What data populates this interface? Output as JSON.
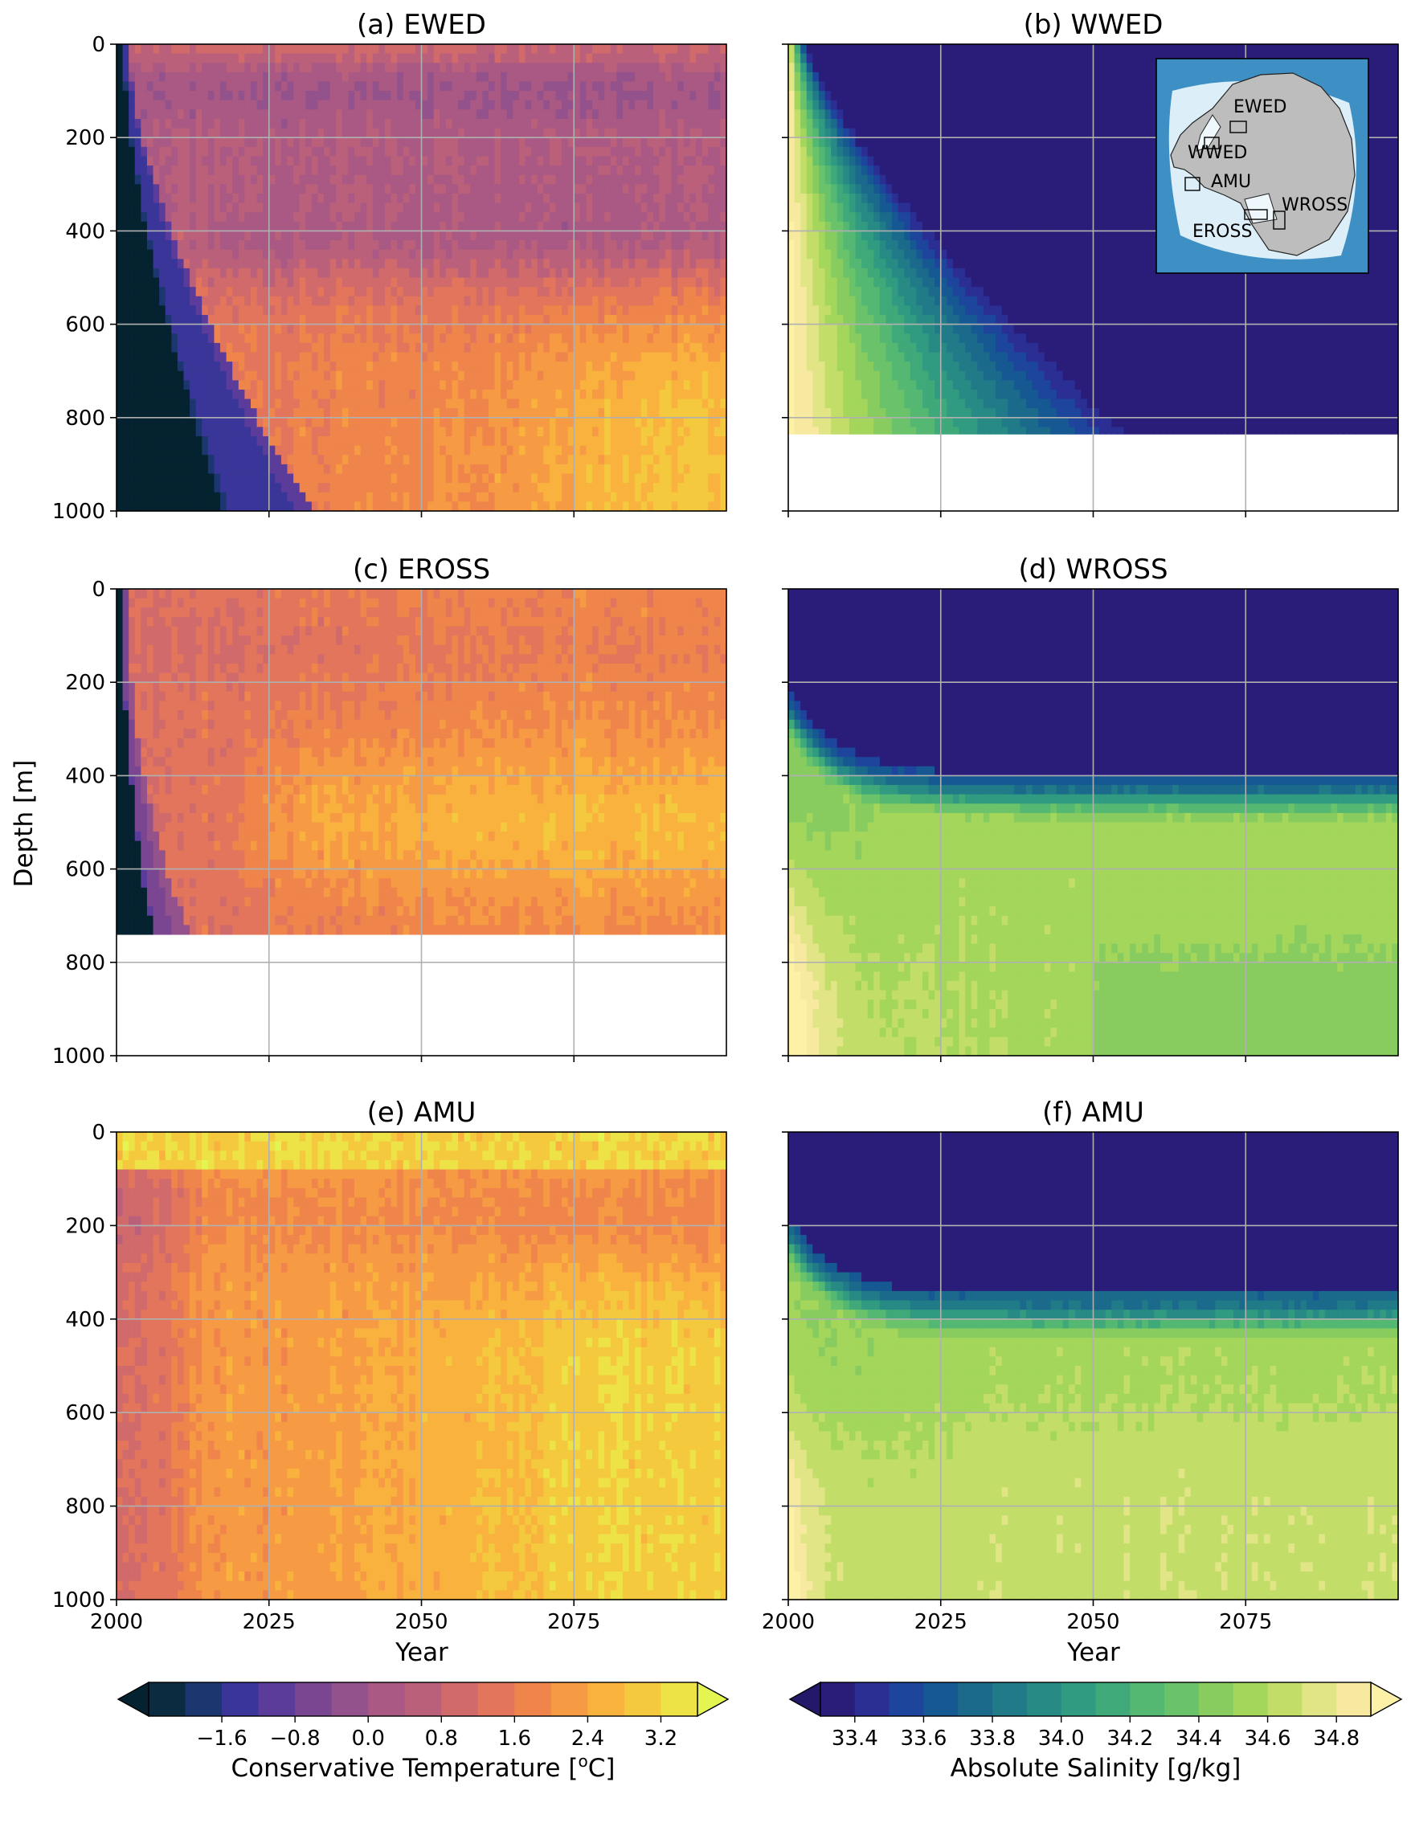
{
  "figure": {
    "ylabel": "Depth [m]",
    "xlabel": "Year"
  },
  "inset_map": {
    "region_labels": [
      "EWED",
      "WWED",
      "AMU",
      "WROSS",
      "EROSS"
    ],
    "land_color": "#bdbdbd",
    "ocean_color": "#3d8fc4"
  },
  "chart_data": [
    {
      "type": "heatmap",
      "panel": "a",
      "title": "(a) EWED",
      "variable": "temperature",
      "xlim": [
        2000,
        2100
      ],
      "xticks": [
        2025,
        2050,
        2075
      ],
      "ylim": [
        1000,
        0
      ],
      "yticks": [
        0,
        200,
        400,
        600,
        800,
        1000
      ],
      "show_xticklabels": false,
      "show_yticklabels": true,
      "max_depth": 1000
    },
    {
      "type": "heatmap",
      "panel": "b",
      "title": "(b) WWED",
      "variable": "salinity",
      "xlim": [
        2000,
        2100
      ],
      "xticks": [
        2025,
        2050,
        2075
      ],
      "ylim": [
        1000,
        0
      ],
      "yticks": [
        0,
        200,
        400,
        600,
        800,
        1000
      ],
      "show_xticklabels": false,
      "show_yticklabels": false,
      "max_depth": 835
    },
    {
      "type": "heatmap",
      "panel": "c",
      "title": "(c) EROSS",
      "variable": "temperature",
      "xlim": [
        2000,
        2100
      ],
      "xticks": [
        2025,
        2050,
        2075
      ],
      "ylim": [
        1000,
        0
      ],
      "yticks": [
        0,
        200,
        400,
        600,
        800,
        1000
      ],
      "show_xticklabels": false,
      "show_yticklabels": true,
      "max_depth": 742
    },
    {
      "type": "heatmap",
      "panel": "d",
      "title": "(d) WROSS",
      "variable": "salinity",
      "xlim": [
        2000,
        2100
      ],
      "xticks": [
        2025,
        2050,
        2075
      ],
      "ylim": [
        1000,
        0
      ],
      "yticks": [
        0,
        200,
        400,
        600,
        800,
        1000
      ],
      "show_xticklabels": false,
      "show_yticklabels": false,
      "max_depth": 1000
    },
    {
      "type": "heatmap",
      "panel": "e",
      "title": "(e) AMU",
      "variable": "temperature",
      "xlim": [
        2000,
        2100
      ],
      "xticks": [
        2000,
        2025,
        2050,
        2075
      ],
      "ylim": [
        1000,
        0
      ],
      "yticks": [
        0,
        200,
        400,
        600,
        800,
        1000
      ],
      "show_xticklabels": true,
      "show_yticklabels": true,
      "max_depth": 1000
    },
    {
      "type": "heatmap",
      "panel": "f",
      "title": "(f) AMU",
      "variable": "salinity",
      "xlim": [
        2000,
        2100
      ],
      "xticks": [
        2000,
        2025,
        2050,
        2075
      ],
      "ylim": [
        1000,
        0
      ],
      "yticks": [
        0,
        200,
        400,
        600,
        800,
        1000
      ],
      "show_xticklabels": true,
      "show_yticklabels": false,
      "max_depth": 1000
    }
  ],
  "colorbars": [
    {
      "label": "Conservative Temperature [°C]",
      "label_main": "Conservative Temperature [",
      "label_sup": "o",
      "label_end": "C]",
      "levels": [
        -2.4,
        -2.0,
        -1.6,
        -1.2,
        -0.8,
        -0.4,
        0.0,
        0.4,
        0.8,
        1.2,
        1.6,
        2.0,
        2.4,
        2.8,
        3.2,
        3.6
      ],
      "ticks": [
        -1.6,
        -0.8,
        0.0,
        0.8,
        1.6,
        2.4,
        3.2
      ],
      "tick_labels": [
        "−1.6",
        "−0.8",
        "0.0",
        "0.8",
        "1.6",
        "2.4",
        "3.2"
      ],
      "under_color": "#04222f",
      "over_color": "#e4f552",
      "colors": [
        "#0a2b40",
        "#1c3670",
        "#3a3699",
        "#5b3c9b",
        "#7a4692",
        "#93528b",
        "#a95983",
        "#bb607a",
        "#d06a6b",
        "#e2755b",
        "#ef854a",
        "#f69a44",
        "#f9b23e",
        "#f4c93e",
        "#ede346"
      ]
    },
    {
      "label": "Absolute Salinity [g/kg]",
      "levels": [
        33.3,
        33.4,
        33.5,
        33.6,
        33.7,
        33.8,
        33.9,
        34.0,
        34.1,
        34.2,
        34.3,
        34.4,
        34.5,
        34.6,
        34.7,
        34.8,
        34.9
      ],
      "ticks": [
        33.4,
        33.6,
        33.8,
        34.0,
        34.2,
        34.4,
        34.6,
        34.8
      ],
      "tick_labels": [
        "33.4",
        "33.6",
        "33.8",
        "34.0",
        "34.2",
        "34.4",
        "34.6",
        "34.8"
      ],
      "under_color": "#23196b",
      "over_color": "#fdf1a8",
      "colors": [
        "#2a1d7a",
        "#2b2f94",
        "#1d459c",
        "#165892",
        "#1b6a8c",
        "#207a88",
        "#278a84",
        "#309b80",
        "#3fa97a",
        "#54b872",
        "#6ac36a",
        "#88cc60",
        "#a3d65b",
        "#c2de69",
        "#e2e586",
        "#f7eaa0"
      ]
    }
  ]
}
